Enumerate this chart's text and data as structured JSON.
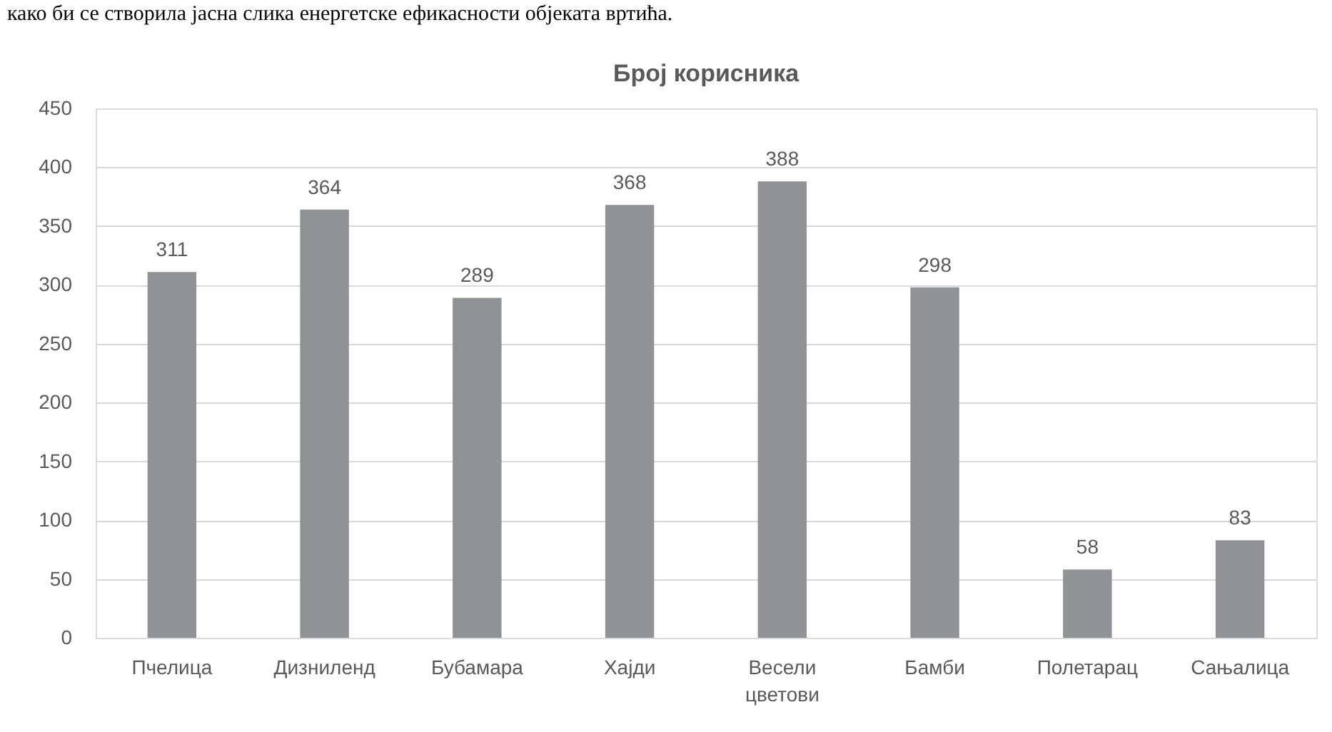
{
  "chart_data": {
    "type": "bar",
    "title": "Број корисника",
    "categories": [
      "Пчелица",
      "Дизниленд",
      "Бубамара",
      "Хајди",
      "Весели цветови",
      "Бамби",
      "Полетарац",
      "Сањалица"
    ],
    "values": [
      311,
      364,
      289,
      368,
      388,
      298,
      58,
      83
    ],
    "color": "#919295",
    "ylim": [
      0,
      450
    ],
    "yticks": [
      0,
      50,
      100,
      150,
      200,
      250,
      300,
      350,
      400,
      450
    ],
    "grid": "y",
    "data_labels": true,
    "annotations": [
      "како би се створила јасна слика енергетске ефикасности објеката вртића."
    ]
  }
}
